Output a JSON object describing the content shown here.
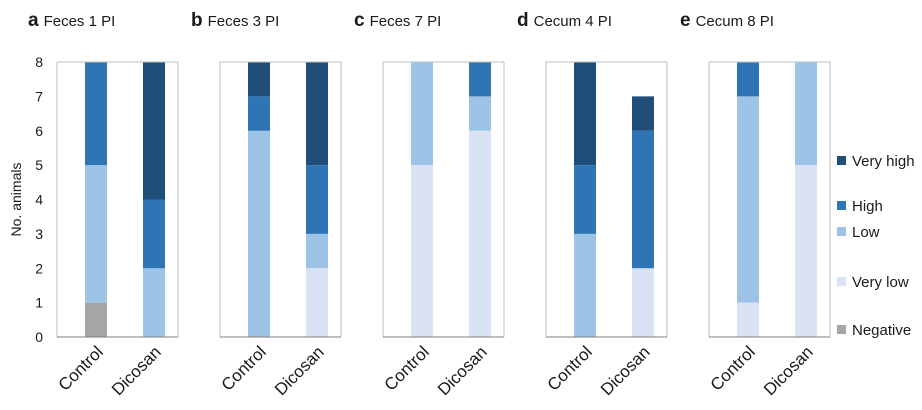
{
  "chart_data": {
    "type": "bar",
    "stacked": true,
    "ylabel": "No. animals",
    "ylim": [
      0,
      8
    ],
    "yticks": [
      "0",
      "1",
      "2",
      "3",
      "4",
      "5",
      "6",
      "7",
      "8"
    ],
    "categories": [
      "Control",
      "Dicosan"
    ],
    "legend": [
      {
        "name": "Very high",
        "color": "#1f4e79"
      },
      {
        "name": "High",
        "color": "#2e75b6"
      },
      {
        "name": "Low",
        "color": "#9dc3e6"
      },
      {
        "name": "Very low",
        "color": "#dae3f3"
      },
      {
        "name": "Negative",
        "color": "#a6a6a6"
      }
    ],
    "stack_order": [
      "Negative",
      "Very low",
      "Low",
      "High",
      "Very high"
    ],
    "panels": [
      {
        "letter": "a",
        "title": "Feces 1 PI",
        "values": {
          "Control": {
            "Negative": 1,
            "Very low": 0,
            "Low": 4,
            "High": 3,
            "Very high": 0
          },
          "Dicosan": {
            "Negative": 0,
            "Very low": 0,
            "Low": 2,
            "High": 2,
            "Very high": 4
          }
        }
      },
      {
        "letter": "b",
        "title": "Feces 3 PI",
        "values": {
          "Control": {
            "Negative": 0,
            "Very low": 0,
            "Low": 6,
            "High": 1,
            "Very high": 1
          },
          "Dicosan": {
            "Negative": 0,
            "Very low": 2,
            "Low": 1,
            "High": 2,
            "Very high": 3
          }
        }
      },
      {
        "letter": "c",
        "title": "Feces 7 PI",
        "values": {
          "Control": {
            "Negative": 0,
            "Very low": 5,
            "Low": 3,
            "High": 0,
            "Very high": 0
          },
          "Dicosan": {
            "Negative": 0,
            "Very low": 6,
            "Low": 1,
            "High": 1,
            "Very high": 0
          }
        }
      },
      {
        "letter": "d",
        "title": "Cecum 4 PI",
        "values": {
          "Control": {
            "Negative": 0,
            "Very low": 0,
            "Low": 3,
            "High": 2,
            "Very high": 3
          },
          "Dicosan": {
            "Negative": 0,
            "Very low": 2,
            "Low": 0,
            "High": 4,
            "Very high": 1
          }
        }
      },
      {
        "letter": "e",
        "title": "Cecum 8 PI",
        "values": {
          "Control": {
            "Negative": 0,
            "Very low": 1,
            "Low": 6,
            "High": 1,
            "Very high": 0
          },
          "Dicosan": {
            "Negative": 0,
            "Very low": 5,
            "Low": 3,
            "High": 0,
            "Very high": 0
          }
        }
      }
    ]
  }
}
